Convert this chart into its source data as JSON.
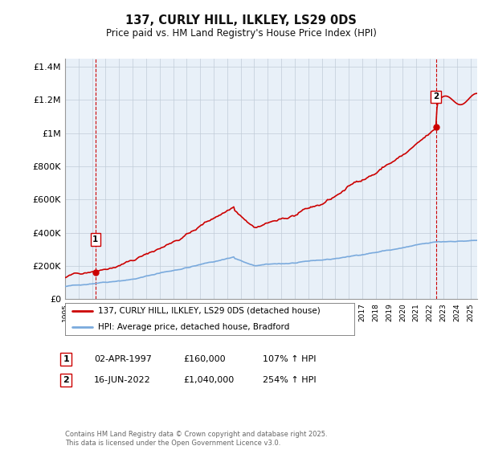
{
  "title": "137, CURLY HILL, ILKLEY, LS29 0DS",
  "subtitle": "Price paid vs. HM Land Registry's House Price Index (HPI)",
  "ylabel_ticks": [
    "£0",
    "£200K",
    "£400K",
    "£600K",
    "£800K",
    "£1M",
    "£1.2M",
    "£1.4M"
  ],
  "ylim": [
    0,
    1450000
  ],
  "yticks": [
    0,
    200000,
    400000,
    600000,
    800000,
    1000000,
    1200000,
    1400000
  ],
  "xmin": 1995.0,
  "xmax": 2025.5,
  "sale1_x": 1997.25,
  "sale1_y": 160000,
  "sale2_x": 2022.45,
  "sale2_y": 1040000,
  "legend_label1": "137, CURLY HILL, ILKLEY, LS29 0DS (detached house)",
  "legend_label2": "HPI: Average price, detached house, Bradford",
  "annotation1_date": "02-APR-1997",
  "annotation1_price": "£160,000",
  "annotation1_hpi": "107% ↑ HPI",
  "annotation2_date": "16-JUN-2022",
  "annotation2_price": "£1,040,000",
  "annotation2_hpi": "254% ↑ HPI",
  "footer": "Contains HM Land Registry data © Crown copyright and database right 2025.\nThis data is licensed under the Open Government Licence v3.0.",
  "line_color_property": "#cc0000",
  "line_color_hpi": "#7aaadd",
  "vline_color": "#cc0000",
  "chart_bg": "#e8f0f8",
  "background_color": "#ffffff",
  "grid_color": "#c0ccd8"
}
